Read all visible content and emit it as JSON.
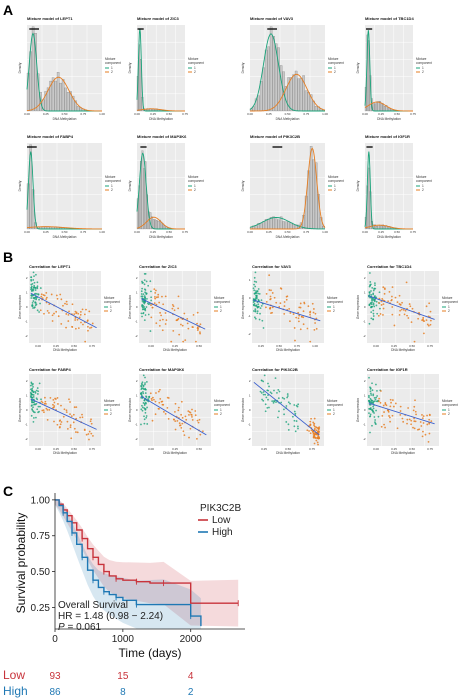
{
  "panels": {
    "a": "A",
    "b": "B",
    "c": "C"
  },
  "shared": {
    "dens_ylabel": "Density",
    "dens_xlabel": "DNA Methylation",
    "corr_ylabel": "Gene expression",
    "corr_xlabel": "DNA Methylation",
    "legend_title_1": "Mixture",
    "legend_title_2": "component",
    "legend_items": [
      "1",
      "2"
    ],
    "colors": {
      "comp1": "#1aa37a",
      "comp2": "#e67e22",
      "regression": "#3a5fcd",
      "hist_fill": "#c8c8c8",
      "plot_bg": "#ebebeb"
    }
  },
  "chart_data": [
    {
      "type": "histogram",
      "panel": "A",
      "charts": [
        {
          "title": "Mixture model of LEPT1",
          "x_ticks": [
            "0.00",
            "0.25",
            "0.50",
            "0.75",
            "1.00"
          ],
          "comp1": {
            "mean": 0.08,
            "sd": 0.05,
            "weight": 0.45
          },
          "comp2": {
            "mean": 0.42,
            "sd": 0.14,
            "weight": 0.55
          }
        },
        {
          "title": "Mixture model of ZIC3",
          "x_ticks": [
            "0.00",
            "0.25",
            "0.50",
            "0.75"
          ],
          "comp1": {
            "mean": 0.06,
            "sd": 0.03,
            "weight": 0.85
          },
          "comp2": {
            "mean": 0.3,
            "sd": 0.2,
            "weight": 0.15
          }
        },
        {
          "title": "Mixture model of VAV3",
          "x_ticks": [
            "0.00",
            "0.25",
            "0.50",
            "0.75",
            "1.00"
          ],
          "comp1": {
            "mean": 0.28,
            "sd": 0.1,
            "weight": 0.6
          },
          "comp2": {
            "mean": 0.62,
            "sd": 0.14,
            "weight": 0.4
          }
        },
        {
          "title": "Mixture model of TBC1D4",
          "x_ticks": [
            "0.00",
            "0.25",
            "0.50",
            "0.75"
          ],
          "comp1": {
            "mean": 0.07,
            "sd": 0.03,
            "weight": 0.6
          },
          "comp2": {
            "mean": 0.25,
            "sd": 0.18,
            "weight": 0.4
          }
        },
        {
          "title": "Mixture model of FABP4",
          "x_ticks": [
            "0.00",
            "0.25",
            "0.50",
            "0.75",
            "1.00"
          ],
          "comp1": {
            "mean": 0.05,
            "sd": 0.03,
            "weight": 0.8
          },
          "comp2": {
            "mean": 0.25,
            "sd": 0.25,
            "weight": 0.2
          }
        },
        {
          "title": "Mixture model of MAP3K6",
          "x_ticks": [
            "0.00",
            "0.25",
            "0.50",
            "0.75"
          ],
          "comp1": {
            "mean": 0.12,
            "sd": 0.07,
            "weight": 0.75
          },
          "comp2": {
            "mean": 0.35,
            "sd": 0.15,
            "weight": 0.25
          }
        },
        {
          "title": "Mixture model of PIK3C2B",
          "x_ticks": [
            "0.00",
            "0.25",
            "0.50",
            "0.75",
            "1.00"
          ],
          "comp1": {
            "mean": 0.35,
            "sd": 0.18,
            "weight": 0.3
          },
          "comp2": {
            "mean": 0.83,
            "sd": 0.06,
            "weight": 0.7
          }
        },
        {
          "title": "Mixture model of IGF1R",
          "x_ticks": [
            "0.00",
            "0.25",
            "0.50",
            "0.75"
          ],
          "comp1": {
            "mean": 0.08,
            "sd": 0.03,
            "weight": 0.75
          },
          "comp2": {
            "mean": 0.3,
            "sd": 0.2,
            "weight": 0.25
          }
        }
      ]
    },
    {
      "type": "scatter",
      "panel": "B",
      "charts": [
        {
          "title": "Correlation for LEPT1",
          "x_ticks": [
            "0.00",
            "0.25",
            "0.50",
            "0.75"
          ],
          "y_ticks": [
            "-2",
            "-1",
            "0",
            "1",
            "2"
          ],
          "fit": [
            [
              0.0,
              1.0
            ],
            [
              0.75,
              -1.5
            ]
          ]
        },
        {
          "title": "Correlation for ZIC3",
          "x_ticks": [
            "0.00",
            "0.25",
            "0.50"
          ],
          "y_ticks": [
            "-2",
            "-1",
            "0",
            "1",
            "2"
          ],
          "fit": [
            [
              0.0,
              0.6
            ],
            [
              0.55,
              -1.6
            ]
          ]
        },
        {
          "title": "Correlation for VAV3",
          "x_ticks": [
            "0.25",
            "0.50",
            "0.75",
            "1.00"
          ],
          "y_ticks": [
            "-2",
            "-1",
            "0",
            "1"
          ],
          "fit": [
            [
              0.1,
              0.5
            ],
            [
              1.0,
              -1.0
            ]
          ]
        },
        {
          "title": "Correlation for TBC1D4",
          "x_ticks": [
            "0.00",
            "0.25",
            "0.50",
            "0.75"
          ],
          "y_ticks": [
            "-2",
            "-1",
            "0",
            "1",
            "2"
          ],
          "fit": [
            [
              0.0,
              0.8
            ],
            [
              0.75,
              -0.9
            ]
          ]
        },
        {
          "title": "Correlation for FABP4",
          "x_ticks": [
            "0.00",
            "0.25",
            "0.50",
            "0.75"
          ],
          "y_ticks": [
            "-2",
            "-1",
            "0",
            "1",
            "2"
          ],
          "fit": [
            [
              0.0,
              0.8
            ],
            [
              0.75,
              -1.4
            ]
          ]
        },
        {
          "title": "Correlation for MAP3K6",
          "x_ticks": [
            "0.00",
            "0.25",
            "0.50"
          ],
          "y_ticks": [
            "-2",
            "-1",
            "0",
            "1",
            "2"
          ],
          "fit": [
            [
              0.0,
              1.0
            ],
            [
              0.7,
              -1.8
            ]
          ]
        },
        {
          "title": "Correlation for PIK3C2B",
          "x_ticks": [
            "0.25",
            "0.50",
            "0.75"
          ],
          "y_ticks": [
            "-2",
            "-1",
            "0",
            "1",
            "2"
          ],
          "fit": [
            [
              0.2,
              2.0
            ],
            [
              0.9,
              -1.8
            ]
          ]
        },
        {
          "title": "Correlation for IGF1R",
          "x_ticks": [
            "0.00",
            "0.25",
            "0.50",
            "0.75"
          ],
          "y_ticks": [
            "-2",
            "-1",
            "0",
            "1",
            "2"
          ],
          "fit": [
            [
              0.0,
              0.5
            ],
            [
              0.75,
              -1.0
            ]
          ]
        }
      ]
    },
    {
      "type": "line",
      "panel": "C",
      "title": "",
      "xlabel": "Time (days)",
      "ylabel": "Survival probability",
      "x_ticks": [
        "0",
        "1000",
        "2000"
      ],
      "y_ticks": [
        "0.25",
        "0.50",
        "0.75",
        "1.00"
      ],
      "xlim": [
        0,
        2800
      ],
      "ylim": [
        0.1,
        1.02
      ],
      "legend_title": "PIK3C2B",
      "series": [
        {
          "name": "Low",
          "color": "#c8333b",
          "x": [
            0,
            60,
            120,
            180,
            250,
            320,
            400,
            480,
            560,
            640,
            720,
            800,
            900,
            1000,
            1200,
            1400,
            1600,
            2000,
            2700
          ],
          "y": [
            1.0,
            0.97,
            0.93,
            0.89,
            0.84,
            0.79,
            0.73,
            0.66,
            0.6,
            0.55,
            0.5,
            0.47,
            0.45,
            0.44,
            0.43,
            0.42,
            0.42,
            0.28,
            0.28
          ]
        },
        {
          "name": "High",
          "color": "#1f78b4",
          "x": [
            0,
            60,
            120,
            180,
            250,
            320,
            400,
            480,
            560,
            640,
            720,
            800,
            900,
            1000,
            1200,
            1600,
            2000,
            2150
          ],
          "y": [
            1.0,
            0.96,
            0.91,
            0.85,
            0.77,
            0.69,
            0.6,
            0.51,
            0.44,
            0.39,
            0.36,
            0.34,
            0.32,
            0.3,
            0.27,
            0.27,
            0.19,
            0.12
          ]
        }
      ],
      "annotations": {
        "line1": "Overall Survival",
        "line2": "HR = 1.48 (0.98 − 2.24)",
        "p_label": "P",
        "p_value": " = 0.061"
      },
      "risk_table": {
        "rows": [
          {
            "name": "Low",
            "values": [
              "93",
              "15",
              "4"
            ]
          },
          {
            "name": "High",
            "values": [
              "86",
              "8",
              "2"
            ]
          }
        ]
      }
    }
  ]
}
